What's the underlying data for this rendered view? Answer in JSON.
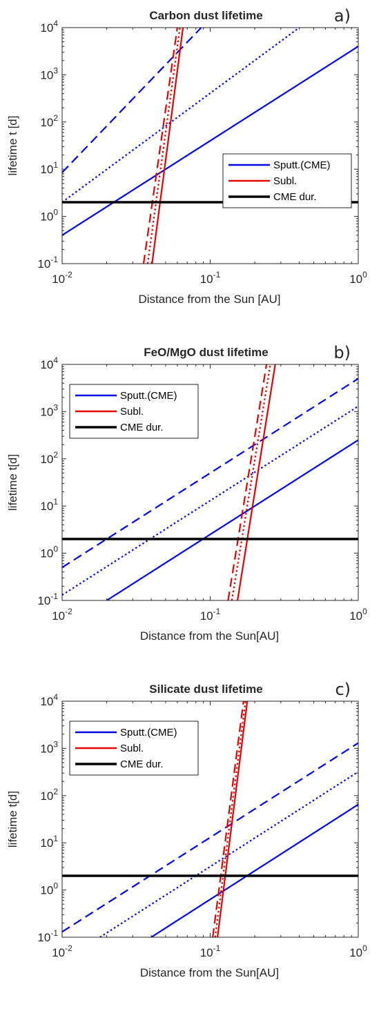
{
  "figure": {
    "panels": 3
  },
  "legend_entries": [
    "Sputt.(CME)",
    "Subl.",
    "CME dur."
  ],
  "colors": {
    "sputtering": "#0000e6",
    "sublimation": "#e60000",
    "cme_duration": "#000000"
  },
  "chart_data": [
    {
      "type": "line",
      "title": "Carbon dust lifetime",
      "panel_label": "a)",
      "xlabel": "Distance from the Sun [AU]",
      "ylabel": "lifetime t [d]",
      "xscale": "log",
      "yscale": "log",
      "xlim": [
        0.01,
        1
      ],
      "ylim": [
        0.1,
        10000
      ],
      "x_ticks": [
        "10^-2",
        "10^-1",
        "10^0"
      ],
      "y_ticks": [
        "10^-1",
        "10^0",
        "10^1",
        "10^2",
        "10^3",
        "10^4"
      ],
      "legend_position": "center-right",
      "series": [
        {
          "name": "Sputt.(CME)",
          "color": "#0000e6",
          "style": "solid",
          "x": [
            0.01,
            1
          ],
          "y": [
            0.4,
            4000
          ]
        },
        {
          "color": "#0000e6",
          "style": "dashed",
          "x": [
            0.01,
            0.087
          ],
          "y": [
            8.5,
            10000
          ]
        },
        {
          "color": "#0000e6",
          "style": "dotted",
          "x": [
            0.01,
            0.4
          ],
          "y": [
            2,
            10000
          ]
        },
        {
          "name": "Subl.",
          "color": "#e60000",
          "style": "solid",
          "x": [
            0.0405,
            0.0655
          ],
          "y": [
            0.1,
            10000
          ]
        },
        {
          "color": "#e60000",
          "style": "dashed",
          "x": [
            0.0355,
            0.06
          ],
          "y": [
            0.1,
            10000
          ]
        },
        {
          "color": "#e60000",
          "style": "dotted",
          "x": [
            0.0378,
            0.0625
          ],
          "y": [
            0.1,
            10000
          ]
        },
        {
          "name": "CME dur.",
          "color": "#000000",
          "style": "solid",
          "x": [
            0.01,
            1
          ],
          "y": [
            2,
            2
          ]
        }
      ]
    },
    {
      "type": "line",
      "title": "FeO/MgO dust lifetime",
      "panel_label": "b)",
      "xlabel": "Distance from the Sun[AU]",
      "ylabel": "lifetime t[d]",
      "xscale": "log",
      "yscale": "log",
      "xlim": [
        0.01,
        1
      ],
      "ylim": [
        0.1,
        10000
      ],
      "x_ticks": [
        "10^-2",
        "10^-1",
        "10^0"
      ],
      "y_ticks": [
        "10^-1",
        "10^0",
        "10^1",
        "10^2",
        "10^3",
        "10^4"
      ],
      "legend_position": "top-left",
      "series": [
        {
          "name": "Sputt.(CME)",
          "color": "#0000e6",
          "style": "solid",
          "x": [
            0.02,
            1
          ],
          "y": [
            0.1,
            250
          ]
        },
        {
          "color": "#0000e6",
          "style": "dashed",
          "x": [
            0.01,
            1
          ],
          "y": [
            0.5,
            5000
          ]
        },
        {
          "color": "#0000e6",
          "style": "dotted",
          "x": [
            0.01,
            1
          ],
          "y": [
            0.13,
            1300
          ]
        },
        {
          "name": "Subl.",
          "color": "#e60000",
          "style": "solid",
          "x": [
            0.153,
            0.275
          ],
          "y": [
            0.1,
            10000
          ]
        },
        {
          "color": "#e60000",
          "style": "dashed",
          "x": [
            0.132,
            0.24
          ],
          "y": [
            0.1,
            10000
          ]
        },
        {
          "color": "#e60000",
          "style": "dotted",
          "x": [
            0.14,
            0.255
          ],
          "y": [
            0.1,
            10000
          ]
        },
        {
          "name": "CME dur.",
          "color": "#000000",
          "style": "solid",
          "x": [
            0.01,
            1
          ],
          "y": [
            2,
            2
          ]
        }
      ]
    },
    {
      "type": "line",
      "title": "Silicate dust lifetime",
      "panel_label": "c)",
      "xlabel": "Distance from the Sun[AU]",
      "ylabel": "lifetime t[d]",
      "xscale": "log",
      "yscale": "log",
      "xlim": [
        0.01,
        1
      ],
      "ylim": [
        0.1,
        10000
      ],
      "x_ticks": [
        "10^-2",
        "10^-1",
        "10^0"
      ],
      "y_ticks": [
        "10^-1",
        "10^0",
        "10^1",
        "10^2",
        "10^3",
        "10^4"
      ],
      "legend_position": "top-left",
      "series": [
        {
          "name": "Sputt.(CME)",
          "color": "#0000e6",
          "style": "solid",
          "x": [
            0.04,
            1
          ],
          "y": [
            0.1,
            65
          ]
        },
        {
          "color": "#0000e6",
          "style": "dashed",
          "x": [
            0.01,
            1
          ],
          "y": [
            0.13,
            1300
          ]
        },
        {
          "color": "#0000e6",
          "style": "dotted",
          "x": [
            0.018,
            1
          ],
          "y": [
            0.1,
            320
          ]
        },
        {
          "name": "Subl.",
          "color": "#e60000",
          "style": "solid",
          "x": [
            0.112,
            0.178
          ],
          "y": [
            0.1,
            10000
          ]
        },
        {
          "color": "#e60000",
          "style": "dashed",
          "x": [
            0.104,
            0.168
          ],
          "y": [
            0.1,
            10000
          ]
        },
        {
          "color": "#e60000",
          "style": "dotted",
          "x": [
            0.108,
            0.173
          ],
          "y": [
            0.1,
            10000
          ]
        },
        {
          "name": "CME dur.",
          "color": "#000000",
          "style": "solid",
          "x": [
            0.01,
            1
          ],
          "y": [
            2,
            2
          ]
        }
      ]
    }
  ]
}
